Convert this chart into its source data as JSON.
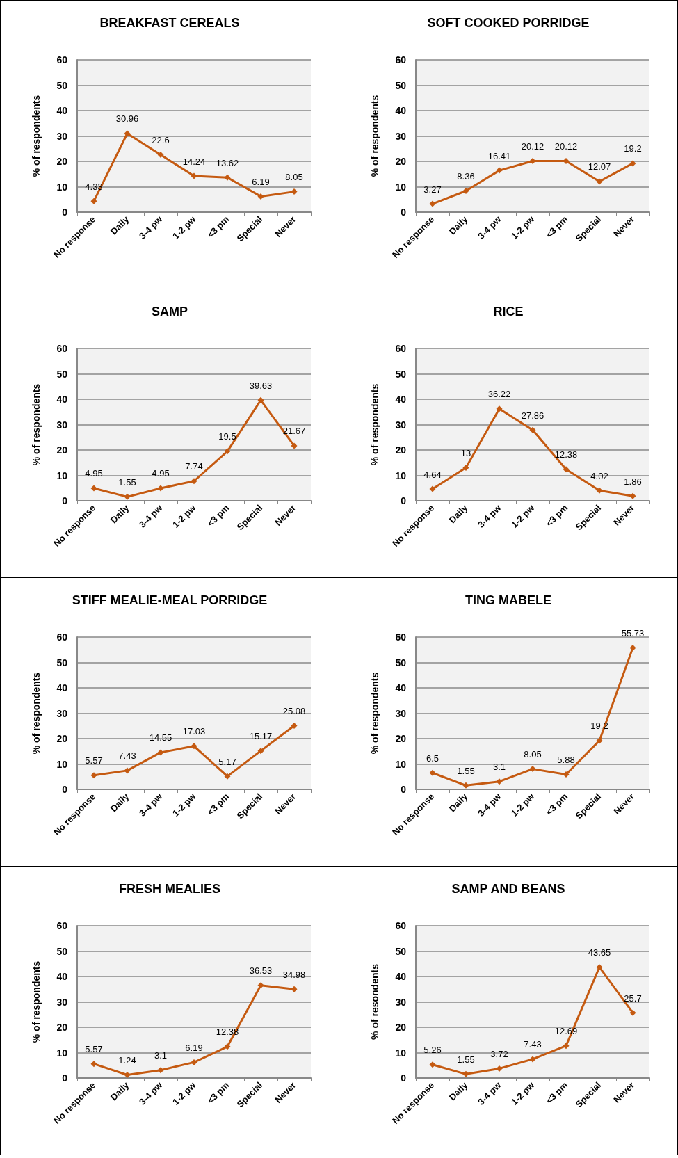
{
  "chart_data": [
    {
      "type": "line",
      "title": "BREAKFAST CEREALS",
      "ylabel": "% of respondents",
      "categories": [
        "No response",
        "Daily",
        "3-4 pw",
        "1-2 pw",
        "<3 pm",
        "Special",
        "Never"
      ],
      "values": [
        4.33,
        30.96,
        22.6,
        14.24,
        13.62,
        6.19,
        8.05
      ],
      "color": "#c55a11",
      "ylim": [
        0,
        60
      ],
      "yticks": [
        0,
        10,
        20,
        30,
        40,
        50,
        60
      ],
      "grid": "y",
      "marker": "diamond",
      "data_labels": true
    },
    {
      "type": "line",
      "title": "SOFT COOKED PORRIDGE",
      "ylabel": "% of respondents",
      "categories": [
        "No response",
        "Daily",
        "3-4 pw",
        "1-2 pw",
        "<3 pm",
        "Special",
        "Never"
      ],
      "values": [
        3.27,
        8.36,
        16.41,
        20.12,
        20.12,
        12.07,
        19.2
      ],
      "color": "#c55a11",
      "ylim": [
        0,
        60
      ],
      "yticks": [
        0,
        10,
        20,
        30,
        40,
        50,
        60
      ],
      "grid": "y",
      "marker": "diamond",
      "data_labels": true
    },
    {
      "type": "line",
      "title": "SAMP",
      "ylabel": "% of respondents",
      "categories": [
        "No response",
        "Daily",
        "3-4 pw",
        "1-2 pw",
        "<3 pm",
        "Special",
        "Never"
      ],
      "values": [
        4.95,
        1.55,
        4.95,
        7.74,
        19.5,
        39.63,
        21.67
      ],
      "color": "#c55a11",
      "ylim": [
        0,
        60
      ],
      "yticks": [
        0,
        10,
        20,
        30,
        40,
        50,
        60
      ],
      "grid": "y",
      "marker": "diamond",
      "data_labels": true
    },
    {
      "type": "line",
      "title": "RICE",
      "ylabel": "% of respondents",
      "categories": [
        "No response",
        "Daily",
        "3-4 pw",
        "1-2 pw",
        "<3 pm",
        "Special",
        "Never"
      ],
      "values": [
        4.64,
        13,
        36.22,
        27.86,
        12.38,
        4.02,
        1.86
      ],
      "color": "#c55a11",
      "ylim": [
        0,
        60
      ],
      "yticks": [
        0,
        10,
        20,
        30,
        40,
        50,
        60
      ],
      "grid": "y",
      "marker": "diamond",
      "data_labels": true
    },
    {
      "type": "line",
      "title": "STIFF MEALIE-MEAL PORRIDGE",
      "ylabel": "% of respondents",
      "categories": [
        "No response",
        "Daily",
        "3-4 pw",
        "1-2 pw",
        "<3 pm",
        "Special",
        "Never"
      ],
      "values": [
        5.57,
        7.43,
        14.55,
        17.03,
        5.17,
        15.17,
        25.08
      ],
      "color": "#c55a11",
      "ylim": [
        0,
        60
      ],
      "yticks": [
        0,
        10,
        20,
        30,
        40,
        50,
        60
      ],
      "grid": "y",
      "marker": "diamond",
      "data_labels": true
    },
    {
      "type": "line",
      "title": "TING MABELE",
      "ylabel": "% of respondents",
      "categories": [
        "No response",
        "Daily",
        "3-4 pw",
        "1-2 pw",
        "<3 pm",
        "Special",
        "Never"
      ],
      "values": [
        6.5,
        1.55,
        3.1,
        8.05,
        5.88,
        19.2,
        55.73
      ],
      "color": "#c55a11",
      "ylim": [
        0,
        60
      ],
      "yticks": [
        0,
        10,
        20,
        30,
        40,
        50,
        60
      ],
      "grid": "y",
      "marker": "diamond",
      "data_labels": true
    },
    {
      "type": "line",
      "title": "FRESH MEALIES",
      "ylabel": "% of respondents",
      "categories": [
        "No response",
        "Daily",
        "3-4 pw",
        "1-2 pw",
        "<3 pm",
        "Special",
        "Never"
      ],
      "values": [
        5.57,
        1.24,
        3.1,
        6.19,
        12.38,
        36.53,
        34.98
      ],
      "color": "#c55a11",
      "ylim": [
        0,
        60
      ],
      "yticks": [
        0,
        10,
        20,
        30,
        40,
        50,
        60
      ],
      "grid": "y",
      "marker": "diamond",
      "data_labels": true
    },
    {
      "type": "line",
      "title": "SAMP AND BEANS",
      "ylabel": "% of resondents",
      "categories": [
        "No response",
        "Daily",
        "3-4 pw",
        "1-2 pw",
        "<3 pm",
        "Special",
        "Never"
      ],
      "values": [
        5.26,
        1.55,
        3.72,
        7.43,
        12.69,
        43.65,
        25.7
      ],
      "color": "#c55a11",
      "ylim": [
        0,
        60
      ],
      "yticks": [
        0,
        10,
        20,
        30,
        40,
        50,
        60
      ],
      "grid": "y",
      "marker": "diamond",
      "data_labels": true
    }
  ]
}
